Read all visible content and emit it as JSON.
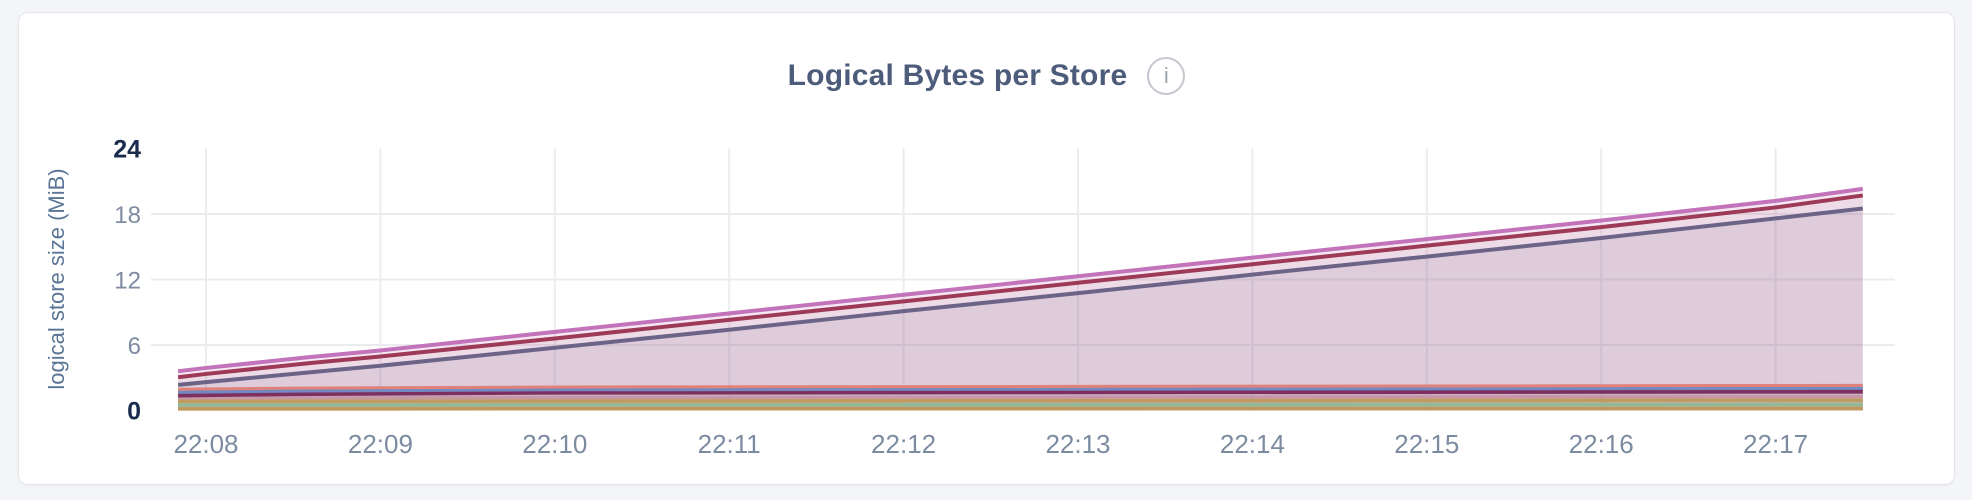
{
  "page": {
    "background_color": "#f4f5f9"
  },
  "card": {
    "background_color": "#ffffff",
    "border_color": "#e4e5e9"
  },
  "header": {
    "title": "Logical Bytes per Store",
    "info_icon": "i"
  },
  "chart_data": {
    "type": "area",
    "title": "Logical Bytes per Store",
    "xlabel": "",
    "ylabel": "logical store size (MiB)",
    "ylim": [
      0,
      24
    ],
    "y_ticks": [
      0,
      6,
      12,
      18,
      24
    ],
    "y_ticks_bold": [
      0,
      24
    ],
    "x_ticks": [
      {
        "label": "22:08",
        "t": 0
      },
      {
        "label": "22:09",
        "t": 1
      },
      {
        "label": "22:10",
        "t": 2
      },
      {
        "label": "22:11",
        "t": 3
      },
      {
        "label": "22:12",
        "t": 4
      },
      {
        "label": "22:13",
        "t": 5
      },
      {
        "label": "22:14",
        "t": 6
      },
      {
        "label": "22:15",
        "t": 7
      },
      {
        "label": "22:16",
        "t": 8
      },
      {
        "label": "22:17",
        "t": 9
      }
    ],
    "x_domain": [
      -0.16,
      9.5
    ],
    "grid": true,
    "legend_position": "none",
    "axis_colors": {
      "tick": "#7d8ba1",
      "tick_bold": "#1b2b4d",
      "grid": "#ececee",
      "axis_title": "#5b7596",
      "title": "#4e5c7c"
    },
    "series": [
      {
        "name": "store-line-orchid",
        "color": "#c273b9",
        "width": 4,
        "fill_opacity": 0.16,
        "points": [
          [
            -0.16,
            3.6
          ],
          [
            0,
            3.9
          ],
          [
            0.6,
            4.9
          ],
          [
            1,
            5.5
          ],
          [
            2,
            7.2
          ],
          [
            3,
            8.9
          ],
          [
            4,
            10.6
          ],
          [
            5,
            12.3
          ],
          [
            6,
            14.0
          ],
          [
            7,
            15.7
          ],
          [
            8,
            17.4
          ],
          [
            9,
            19.2
          ],
          [
            9.5,
            20.3
          ]
        ]
      },
      {
        "name": "store-line-crimson",
        "color": "#9d3a57",
        "width": 4,
        "fill_opacity": 0.07,
        "points": [
          [
            -0.16,
            3.05
          ],
          [
            0,
            3.35
          ],
          [
            0.6,
            4.35
          ],
          [
            1,
            4.95
          ],
          [
            2,
            6.6
          ],
          [
            3,
            8.3
          ],
          [
            4,
            10.0
          ],
          [
            5,
            11.7
          ],
          [
            6,
            13.4
          ],
          [
            7,
            15.1
          ],
          [
            8,
            16.8
          ],
          [
            9,
            18.6
          ],
          [
            9.5,
            19.7
          ]
        ]
      },
      {
        "name": "store-line-slate",
        "color": "#6b6487",
        "width": 4,
        "fill_opacity": 0.12,
        "points": [
          [
            -0.16,
            2.35
          ],
          [
            0,
            2.6
          ],
          [
            0.6,
            3.5
          ],
          [
            1,
            4.1
          ],
          [
            2,
            5.75
          ],
          [
            3,
            7.4
          ],
          [
            4,
            9.1
          ],
          [
            5,
            10.75
          ],
          [
            6,
            12.45
          ],
          [
            7,
            14.1
          ],
          [
            8,
            15.8
          ],
          [
            9,
            17.6
          ],
          [
            9.5,
            18.5
          ]
        ]
      },
      {
        "name": "store-line-salmon",
        "color": "#e08279",
        "width": 3,
        "fill_opacity": 0.1,
        "points": [
          [
            -0.16,
            1.95
          ],
          [
            0.5,
            2.05
          ],
          [
            2,
            2.15
          ],
          [
            9.5,
            2.3
          ]
        ]
      },
      {
        "name": "store-line-blue",
        "color": "#7389c2",
        "width": 3.5,
        "fill_opacity": 0.1,
        "points": [
          [
            -0.16,
            1.68
          ],
          [
            0.5,
            1.8
          ],
          [
            2,
            1.92
          ],
          [
            9.5,
            2.05
          ]
        ]
      },
      {
        "name": "store-line-maroon",
        "color": "#7d2f5f",
        "width": 5,
        "fill_opacity": 0.1,
        "points": [
          [
            -0.16,
            1.42
          ],
          [
            0.5,
            1.55
          ],
          [
            2,
            1.68
          ],
          [
            9.5,
            1.78
          ]
        ]
      },
      {
        "name": "store-line-dusty-pink",
        "color": "#c796a7",
        "width": 3,
        "fill_opacity": 0.1,
        "points": [
          [
            -0.16,
            1.15
          ],
          [
            9.5,
            1.28
          ]
        ]
      },
      {
        "name": "store-line-gold",
        "color": "#c09b5e",
        "width": 3.5,
        "fill_opacity": 0.1,
        "points": [
          [
            -0.16,
            0.85
          ],
          [
            9.5,
            0.95
          ]
        ]
      },
      {
        "name": "store-line-green",
        "color": "#92ba92",
        "width": 3.5,
        "fill_opacity": 0.1,
        "points": [
          [
            -0.16,
            0.5
          ],
          [
            9.5,
            0.55
          ]
        ]
      },
      {
        "name": "store-line-gold-2",
        "color": "#bf995c",
        "width": 3.5,
        "fill_opacity": 0.1,
        "points": [
          [
            -0.16,
            0.15
          ],
          [
            9.5,
            0.18
          ]
        ]
      }
    ]
  }
}
